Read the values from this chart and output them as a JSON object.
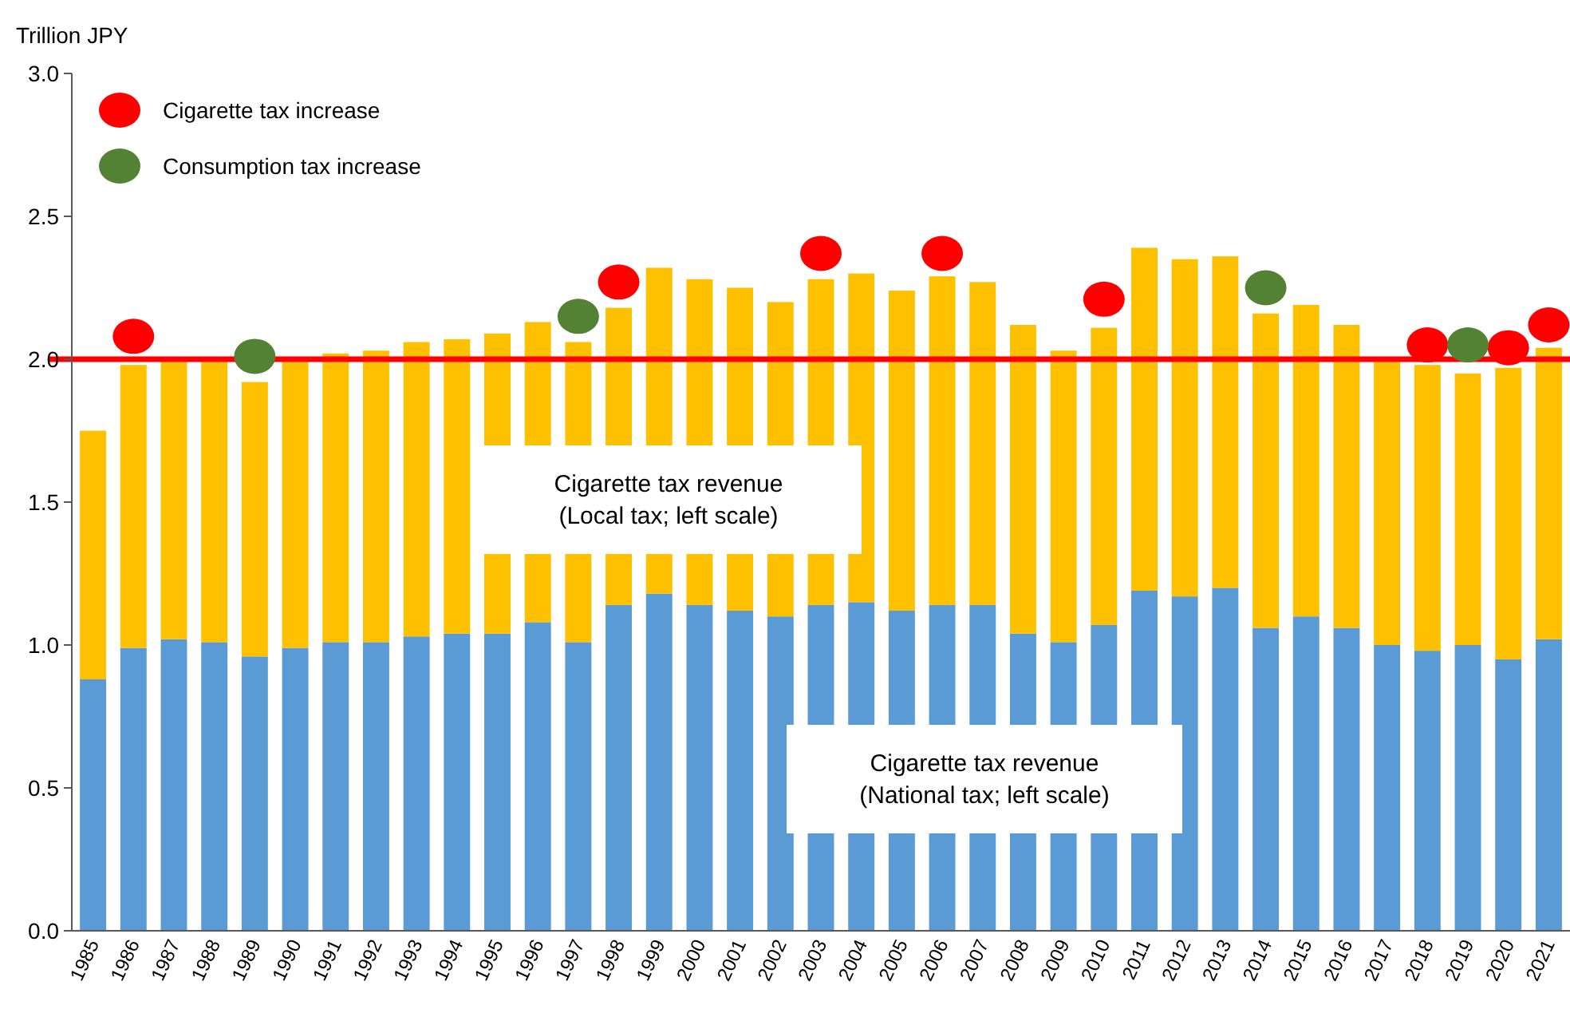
{
  "chart_data": {
    "type": "bar",
    "ylabel": "Trillion JPY",
    "stacked": true,
    "categories": [
      "1985",
      "1986",
      "1987",
      "1988",
      "1989",
      "1990",
      "1991",
      "1992",
      "1993",
      "1994",
      "1995",
      "1996",
      "1997",
      "1998",
      "1999",
      "2000",
      "2001",
      "2002",
      "2003",
      "2004",
      "2005",
      "2006",
      "2007",
      "2008",
      "2009",
      "2010",
      "2011",
      "2012",
      "2013",
      "2014",
      "2015",
      "2016",
      "2017",
      "2018",
      "2019",
      "2020",
      "2021"
    ],
    "series": [
      {
        "name": "Cigarette tax revenue (National tax; left scale)",
        "color": "#5b9bd5",
        "values": [
          0.88,
          0.99,
          1.02,
          1.01,
          0.96,
          0.99,
          1.01,
          1.01,
          1.03,
          1.04,
          1.04,
          1.08,
          1.01,
          1.14,
          1.18,
          1.14,
          1.12,
          1.1,
          1.14,
          1.15,
          1.12,
          1.14,
          1.14,
          1.04,
          1.01,
          1.07,
          1.19,
          1.17,
          1.2,
          1.06,
          1.1,
          1.06,
          1.0,
          0.98,
          1.0,
          0.95,
          1.02
        ]
      },
      {
        "name": "Cigarette tax revenue (Local tax; left scale)",
        "color": "#ffc000",
        "values": [
          0.87,
          0.99,
          0.98,
          0.99,
          0.96,
          1.01,
          1.01,
          1.02,
          1.03,
          1.03,
          1.05,
          1.05,
          1.05,
          1.04,
          1.14,
          1.14,
          1.13,
          1.1,
          1.14,
          1.15,
          1.12,
          1.15,
          1.13,
          1.08,
          1.02,
          1.04,
          1.2,
          1.18,
          1.16,
          1.1,
          1.09,
          1.06,
          1.0,
          1.0,
          0.95,
          1.02,
          1.02
        ]
      },
      {
        "type": "scatter",
        "name": "Cigarette tax increase",
        "color": "#ff0000",
        "values": [
          null,
          2.08,
          null,
          null,
          null,
          null,
          null,
          null,
          null,
          null,
          null,
          null,
          null,
          2.27,
          null,
          null,
          null,
          null,
          2.37,
          null,
          null,
          2.37,
          null,
          null,
          null,
          2.21,
          null,
          null,
          null,
          null,
          null,
          null,
          null,
          2.05,
          null,
          2.04,
          2.12
        ]
      },
      {
        "type": "scatter",
        "name": "Consumption tax increase",
        "color": "#548235",
        "values": [
          null,
          null,
          null,
          null,
          2.01,
          null,
          null,
          null,
          null,
          null,
          null,
          null,
          2.15,
          null,
          null,
          null,
          null,
          null,
          null,
          null,
          null,
          null,
          null,
          null,
          null,
          null,
          null,
          null,
          null,
          2.25,
          null,
          null,
          null,
          null,
          2.05,
          null,
          null
        ]
      }
    ],
    "marker": "circle",
    "legend": "top left",
    "ylim": [
      0,
      3
    ],
    "yticks": [
      {
        "value": 0,
        "label": "0.0"
      },
      {
        "value": 0.5,
        "label": "0.5"
      },
      {
        "value": 1,
        "label": "1.0"
      },
      {
        "value": 1.5,
        "label": "1.5"
      },
      {
        "value": 2,
        "label": "2.0"
      },
      {
        "value": 2.5,
        "label": "2.5"
      },
      {
        "value": 3,
        "label": "3.0"
      }
    ],
    "ref_lines": [
      {
        "axis": "y",
        "value": 2,
        "color": "#ff0000"
      }
    ]
  }
}
